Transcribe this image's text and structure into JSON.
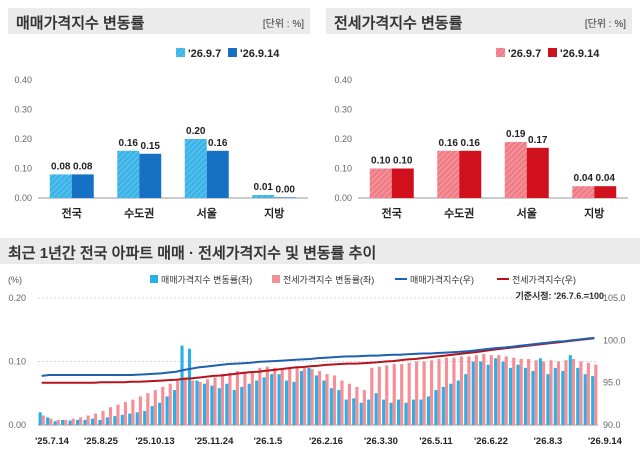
{
  "panel_left": {
    "title": "매매가격지수 변동률",
    "unit": "[단위 : %]"
  },
  "panel_right": {
    "title": "전세가격지수 변동률",
    "unit": "[단위 : %]"
  },
  "bottom_panel": {
    "title": "최근 1년간 전국 아파트 매매 · 전세가격지수 및 변동률 추이"
  },
  "chart_data": [
    {
      "type": "bar",
      "categories": [
        "전국",
        "수도권",
        "서울",
        "지방"
      ],
      "series": [
        {
          "name": "'26.9.7",
          "values": [
            0.08,
            0.16,
            0.2,
            0.01
          ],
          "labels": [
            "0.08",
            "0.16",
            "0.20",
            "0.01"
          ],
          "color": "#3cb4e8"
        },
        {
          "name": "'26.9.14",
          "values": [
            0.08,
            0.15,
            0.16,
            0.0
          ],
          "labels": [
            "0.08",
            "0.15",
            "0.16",
            "0.00"
          ],
          "color": "#1670c4"
        }
      ],
      "yticks": [
        "0.40",
        "0.30",
        "0.20",
        "0.10",
        "0.00"
      ],
      "ylim": [
        0,
        0.4
      ],
      "legend": "top-right"
    },
    {
      "type": "bar",
      "categories": [
        "전국",
        "수도권",
        "서울",
        "지방"
      ],
      "series": [
        {
          "name": "'26.9.7",
          "values": [
            0.1,
            0.16,
            0.19,
            0.04
          ],
          "labels": [
            "0.10",
            "0.16",
            "0.19",
            "0.04"
          ],
          "color": "#f28a93"
        },
        {
          "name": "'26.9.14",
          "values": [
            0.1,
            0.16,
            0.17,
            0.04
          ],
          "labels": [
            "0.10",
            "0.16",
            "0.17",
            "0.04"
          ],
          "color": "#d0101c"
        }
      ],
      "yticks": [
        "0.40",
        "0.30",
        "0.20",
        "0.10",
        "0.00"
      ],
      "ylim": [
        0,
        0.4
      ],
      "legend": "top-right"
    },
    {
      "type": "bar+line",
      "left_unit": "(%)",
      "base_note": "기준시점: '26.7.6.=100",
      "left_yticks": [
        "0.20",
        "0.10",
        "0.00"
      ],
      "right_yticks": [
        "105.0",
        "100.0",
        "95.0",
        "90.0"
      ],
      "left_ylim": [
        0,
        0.2
      ],
      "right_ylim": [
        90,
        105
      ],
      "x_tick_labels": [
        "'25.7.14",
        "'25.8.25",
        "'25.10.13",
        "'25.11.24",
        "'26.1.5",
        "'26.2.16",
        "'26.3.30",
        "'26.5.11",
        "'26.6.22",
        "'26.8.3",
        "'26.9.14"
      ],
      "legend": [
        "매매가격지수 변동률(좌)",
        "전세가격지수 변동률(좌)",
        "매매가격지수(우)",
        "전세가격지수(우)"
      ],
      "colors": {
        "sale_rate": "#29b0e6",
        "jeonse_rate": "#f58e96",
        "sale_index": "#1f5fb0",
        "jeonse_index": "#b4141e"
      },
      "sale_rate": [
        0.02,
        0.012,
        0.006,
        0.008,
        0.007,
        0.008,
        0.008,
        0.01,
        0.008,
        0.012,
        0.014,
        0.016,
        0.018,
        0.02,
        0.022,
        0.03,
        0.035,
        0.045,
        0.055,
        0.125,
        0.12,
        0.07,
        0.065,
        0.062,
        0.058,
        0.065,
        0.055,
        0.06,
        0.065,
        0.07,
        0.075,
        0.08,
        0.08,
        0.07,
        0.068,
        0.085,
        0.09,
        0.078,
        0.07,
        0.058,
        0.055,
        0.04,
        0.042,
        0.035,
        0.04,
        0.05,
        0.04,
        0.035,
        0.04,
        0.035,
        0.04,
        0.04,
        0.045,
        0.055,
        0.06,
        0.065,
        0.07,
        0.08,
        0.1,
        0.1,
        0.095,
        0.105,
        0.1,
        0.09,
        0.095,
        0.09,
        0.085,
        0.105,
        0.08,
        0.09,
        0.085,
        0.11,
        0.09,
        0.08,
        0.077
      ],
      "jeonse_rate": [
        0.015,
        0.01,
        0.008,
        0.008,
        0.01,
        0.012,
        0.015,
        0.018,
        0.022,
        0.028,
        0.032,
        0.036,
        0.04,
        0.045,
        0.05,
        0.055,
        0.06,
        0.065,
        0.07,
        0.075,
        0.07,
        0.068,
        0.072,
        0.075,
        0.08,
        0.082,
        0.085,
        0.082,
        0.085,
        0.09,
        0.092,
        0.09,
        0.088,
        0.09,
        0.092,
        0.09,
        0.088,
        0.085,
        0.08,
        0.078,
        0.07,
        0.065,
        0.06,
        0.055,
        0.09,
        0.092,
        0.094,
        0.096,
        0.096,
        0.098,
        0.1,
        0.1,
        0.102,
        0.104,
        0.106,
        0.106,
        0.108,
        0.108,
        0.11,
        0.112,
        0.11,
        0.11,
        0.108,
        0.106,
        0.104,
        0.104,
        0.102,
        0.1,
        0.102,
        0.1,
        0.102,
        0.104,
        0.1,
        0.098,
        0.095
      ],
      "sale_index": [
        95.8,
        95.9,
        95.9,
        95.9,
        95.9,
        95.9,
        95.9,
        95.9,
        95.9,
        95.9,
        95.9,
        95.9,
        95.9,
        95.95,
        96.0,
        96.05,
        96.1,
        96.2,
        96.3,
        96.5,
        96.65,
        96.8,
        96.9,
        97.0,
        97.1,
        97.2,
        97.25,
        97.3,
        97.35,
        97.45,
        97.5,
        97.55,
        97.6,
        97.65,
        97.7,
        97.75,
        97.8,
        97.9,
        97.95,
        98.0,
        98.05,
        98.1,
        98.1,
        98.15,
        98.2,
        98.2,
        98.25,
        98.3,
        98.3,
        98.35,
        98.4,
        98.45,
        98.45,
        98.5,
        98.55,
        98.6,
        98.65,
        98.7,
        98.8,
        98.9,
        99.0,
        99.1,
        99.15,
        99.25,
        99.35,
        99.45,
        99.55,
        99.65,
        99.75,
        99.85,
        99.9,
        100.0,
        100.1,
        100.2,
        100.3
      ],
      "jeonse_index": [
        95.0,
        95.0,
        95.0,
        95.0,
        95.0,
        95.0,
        95.0,
        95.0,
        95.05,
        95.05,
        95.05,
        95.05,
        95.1,
        95.1,
        95.15,
        95.2,
        95.25,
        95.3,
        95.35,
        95.45,
        95.5,
        95.6,
        95.7,
        95.8,
        95.85,
        95.95,
        96.05,
        96.15,
        96.25,
        96.3,
        96.4,
        96.5,
        96.6,
        96.7,
        96.8,
        96.85,
        96.95,
        97.0,
        97.1,
        97.15,
        97.2,
        97.25,
        97.25,
        97.3,
        97.35,
        97.4,
        97.5,
        97.55,
        97.65,
        97.75,
        97.8,
        97.9,
        98.0,
        98.1,
        98.2,
        98.3,
        98.4,
        98.5,
        98.6,
        98.7,
        98.85,
        98.95,
        99.05,
        99.15,
        99.25,
        99.35,
        99.45,
        99.55,
        99.65,
        99.75,
        99.85,
        99.95,
        100.05,
        100.15,
        100.25
      ]
    }
  ]
}
